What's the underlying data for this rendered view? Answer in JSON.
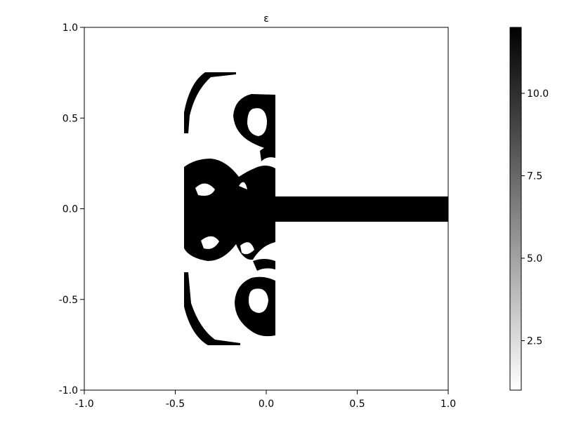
{
  "chart_data": {
    "type": "heatmap",
    "title": "ε",
    "xlabel": "",
    "ylabel": "",
    "xlim": [
      -1.0,
      1.0
    ],
    "ylim": [
      -1.0,
      1.0
    ],
    "x_ticks": [
      "-1.0",
      "-0.5",
      "0.0",
      "0.5",
      "1.0"
    ],
    "x_tick_values": [
      -1.0,
      -0.5,
      0.0,
      0.5,
      1.0
    ],
    "y_ticks": [
      "-1.0",
      "-0.5",
      "0.0",
      "0.5",
      "1.0"
    ],
    "y_tick_values": [
      -1.0,
      -0.5,
      0.0,
      0.5,
      1.0
    ],
    "colorbar": {
      "range": [
        1.0,
        12.0
      ],
      "ticks": [
        "2.5",
        "5.0",
        "7.5",
        "10.0"
      ],
      "tick_values": [
        2.5,
        5.0,
        7.5,
        10.0
      ],
      "colormap": "grayscale",
      "low_color": "#ffffff",
      "high_color": "#000000"
    },
    "grid": false,
    "value_high": 12.0,
    "value_low": 1.0
  }
}
